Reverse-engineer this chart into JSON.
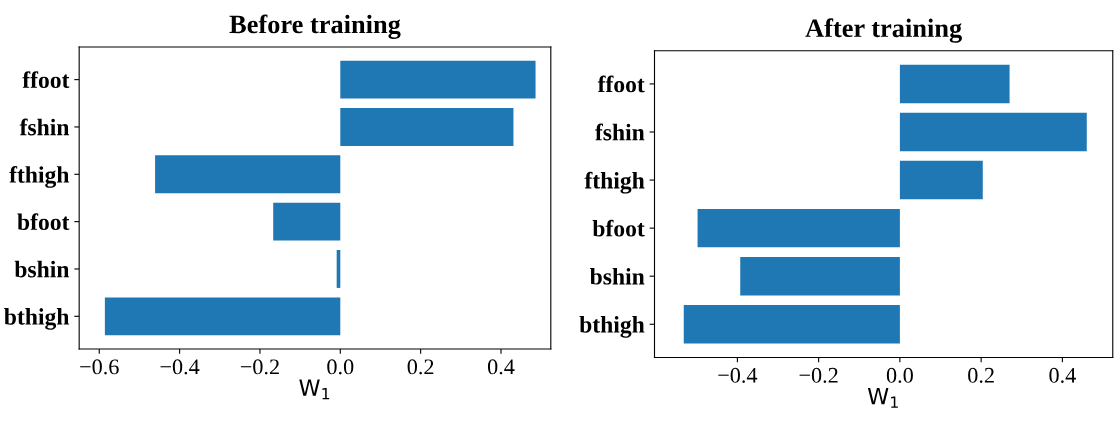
{
  "chart_data": [
    {
      "type": "bar",
      "orientation": "horizontal",
      "title": "Before training",
      "xlabel": "W$_{1}$",
      "categories": [
        "ffoot",
        "fshin",
        "fthigh",
        "bfoot",
        "bshin",
        "bthigh"
      ],
      "values": [
        0.486,
        0.431,
        -0.461,
        -0.167,
        -0.009,
        -0.586
      ],
      "color": "#1f77b4",
      "xlim": [
        -0.65,
        0.524
      ],
      "xticks": [
        {
          "value": -0.6,
          "label": "−0.6"
        },
        {
          "value": -0.4,
          "label": "−0.4"
        },
        {
          "value": -0.2,
          "label": "−0.2"
        },
        {
          "value": 0.0,
          "label": "0.0"
        },
        {
          "value": 0.2,
          "label": "0.2"
        },
        {
          "value": 0.4,
          "label": "0.4"
        }
      ],
      "grid": false,
      "legend": false
    },
    {
      "type": "bar",
      "orientation": "horizontal",
      "title": "After training",
      "xlabel": "W$_{1}$",
      "categories": [
        "ffoot",
        "fshin",
        "fthigh",
        "bfoot",
        "bshin",
        "bthigh"
      ],
      "values": [
        0.27,
        0.46,
        0.204,
        -0.498,
        -0.393,
        -0.532
      ],
      "color": "#1f77b4",
      "xlim": [
        -0.604,
        0.524
      ],
      "xticks": [
        {
          "value": -0.4,
          "label": "−0.4"
        },
        {
          "value": -0.2,
          "label": "−0.2"
        },
        {
          "value": 0.0,
          "label": "0.0"
        },
        {
          "value": 0.2,
          "label": "0.2"
        },
        {
          "value": 0.4,
          "label": "0.4"
        }
      ],
      "grid": false,
      "legend": false
    }
  ]
}
